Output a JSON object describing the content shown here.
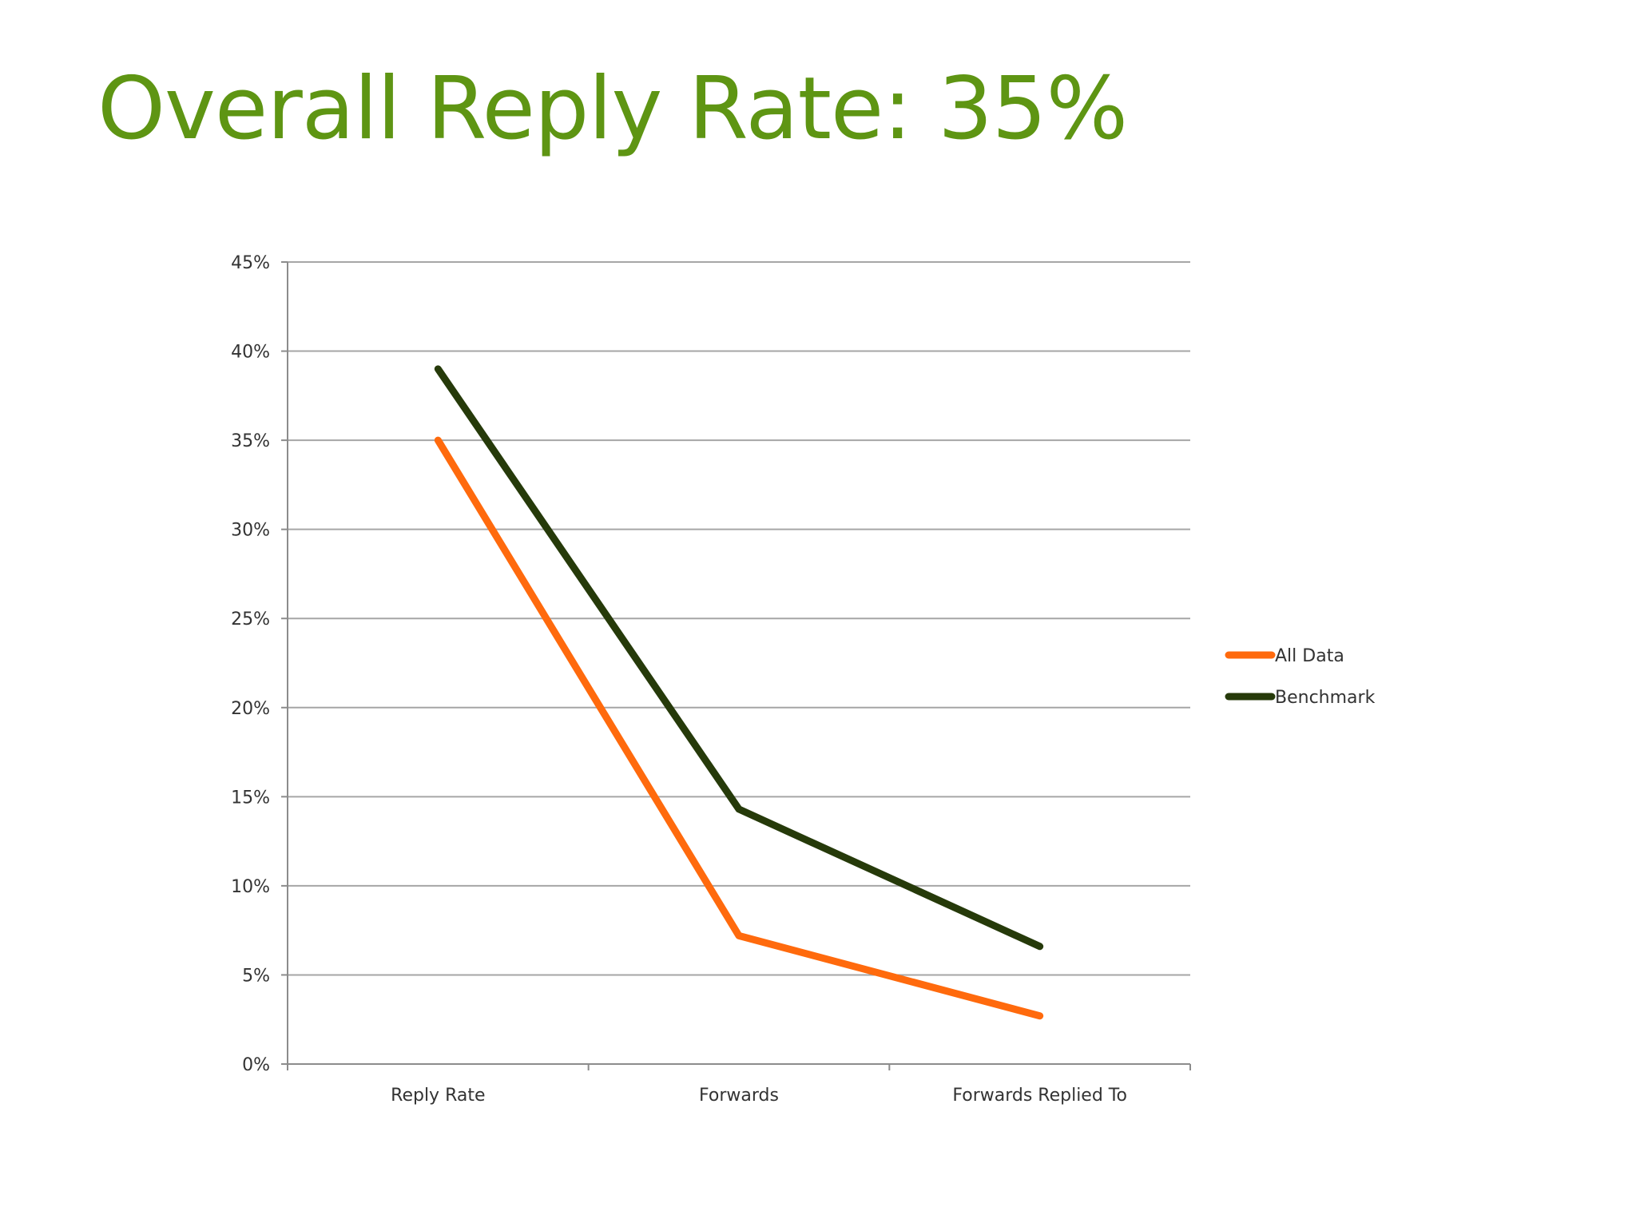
{
  "slide": {
    "title": "Overall Reply Rate: 35%"
  },
  "chart_data": {
    "type": "line",
    "title": "",
    "xlabel": "",
    "ylabel": "",
    "categories": [
      "Reply Rate",
      "Forwards",
      "Forwards Replied To"
    ],
    "series": [
      {
        "name": "All Data",
        "color": "#ff6a0d",
        "values": [
          35,
          7.2,
          2.7
        ]
      },
      {
        "name": "Benchmark",
        "color": "#263a0a",
        "values": [
          39,
          14.3,
          6.6
        ]
      }
    ],
    "y_ticks": [
      0,
      5,
      10,
      15,
      20,
      25,
      30,
      35,
      40,
      45
    ],
    "y_tick_labels": [
      "0%",
      "5%",
      "10%",
      "15%",
      "20%",
      "25%",
      "30%",
      "35%",
      "40%",
      "45%"
    ],
    "ylim": [
      0,
      45
    ],
    "grid": true,
    "legend_position": "right",
    "gridline_color": "#a6a6a6",
    "axis_color": "#8c8c8c"
  }
}
